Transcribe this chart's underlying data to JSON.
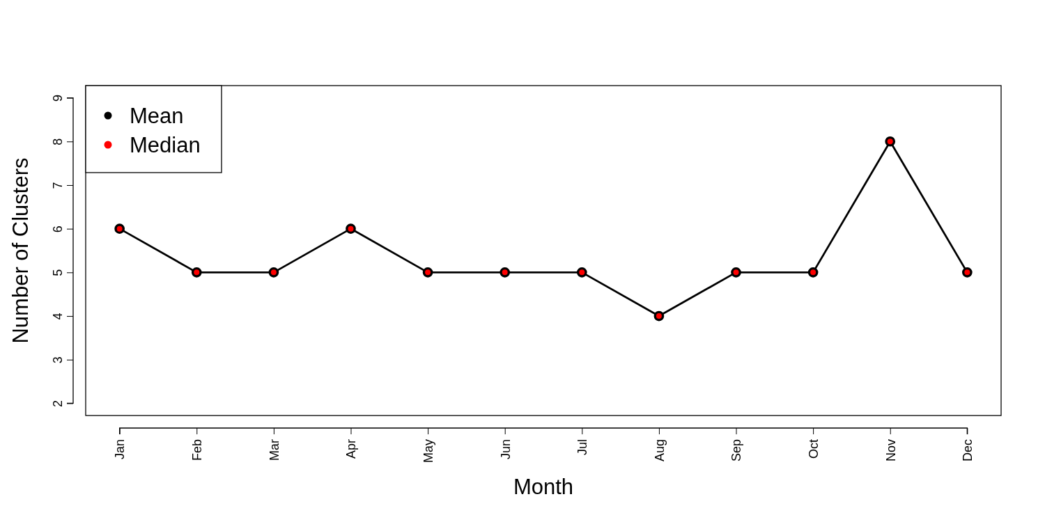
{
  "chart_data": {
    "type": "line",
    "xlabel": "Month",
    "ylabel": "Number of Clusters",
    "categories": [
      "Jan",
      "Feb",
      "Mar",
      "Apr",
      "May",
      "Jun",
      "Jul",
      "Aug",
      "Sep",
      "Oct",
      "Nov",
      "Dec"
    ],
    "series": [
      {
        "name": "Mean",
        "color": "#000000",
        "values": [
          6,
          5,
          5,
          6,
          5,
          5,
          5,
          4,
          5,
          5,
          8,
          5
        ]
      },
      {
        "name": "Median",
        "type": "scatter",
        "color": "#ff0000",
        "values": [
          6,
          5,
          5,
          6,
          5,
          5,
          5,
          4,
          5,
          5,
          8,
          5
        ]
      }
    ],
    "ylim": [
      1.72,
      9.28
    ],
    "yticks": [
      2,
      3,
      4,
      5,
      6,
      7,
      8,
      9
    ],
    "marker": "circle",
    "line_style": "solid",
    "legend": "top left",
    "grid": false
  }
}
